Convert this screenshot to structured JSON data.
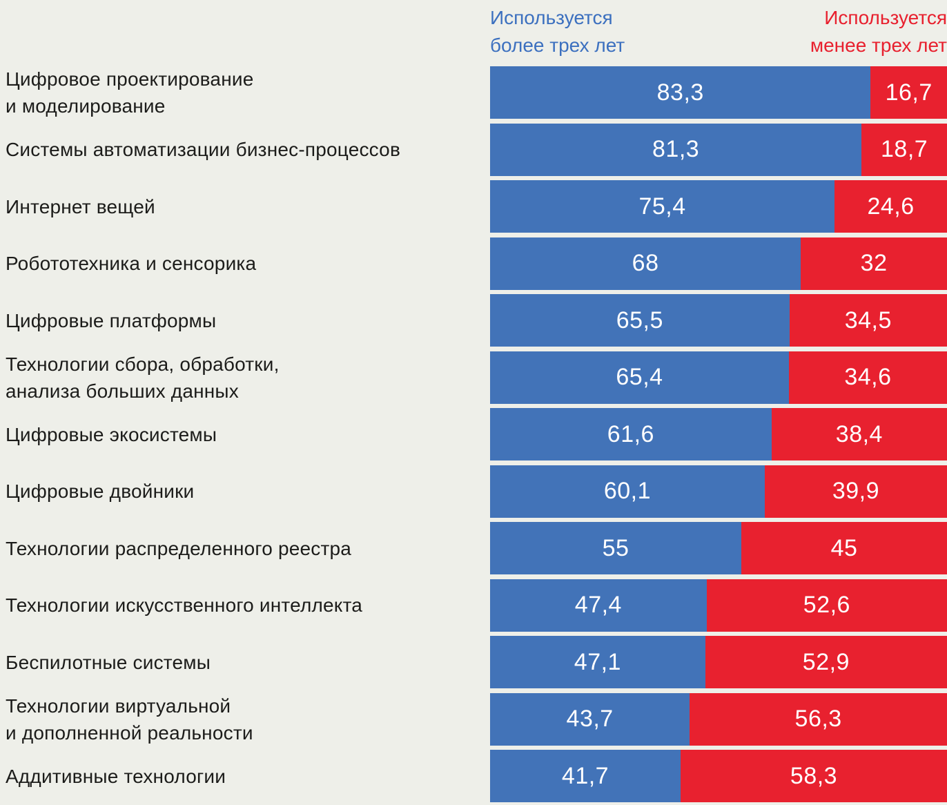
{
  "colors": {
    "background": "#eeefe9",
    "blue": "#4273b8",
    "red": "#e8212f",
    "label_text": "#1c1c1a",
    "legend_blue": "#3c70bf",
    "legend_red": "#e8202e",
    "value_text": "#ffffff"
  },
  "legend": {
    "more_label": "Используется\nболее трех лет",
    "less_label": "Используется\nменее трех лет"
  },
  "chart_data": {
    "type": "bar",
    "orientation": "horizontal",
    "stacked": true,
    "unit": "percent",
    "x_range": [
      0,
      100
    ],
    "decimal_separator": ",",
    "legend_position": "top",
    "series_names": [
      "Используется более трех лет",
      "Используется менее трех лет"
    ],
    "series_colors": [
      "#4273b8",
      "#e8212f"
    ],
    "rows": [
      {
        "category": "Цифровое проектирование\nи моделирование",
        "more": 83.3,
        "less": 16.7,
        "more_label": "83,3",
        "less_label": "16,7"
      },
      {
        "category": "Системы автоматизации бизнес-процессов",
        "more": 81.3,
        "less": 18.7,
        "more_label": "81,3",
        "less_label": "18,7"
      },
      {
        "category": "Интернет вещей",
        "more": 75.4,
        "less": 24.6,
        "more_label": "75,4",
        "less_label": "24,6"
      },
      {
        "category": "Робототехника и сенсорика",
        "more": 68,
        "less": 32,
        "more_label": "68",
        "less_label": "32"
      },
      {
        "category": "Цифровые платформы",
        "more": 65.5,
        "less": 34.5,
        "more_label": "65,5",
        "less_label": "34,5"
      },
      {
        "category": "Технологии сбора, обработки,\nанализа больших данных",
        "more": 65.4,
        "less": 34.6,
        "more_label": "65,4",
        "less_label": "34,6"
      },
      {
        "category": "Цифровые экосистемы",
        "more": 61.6,
        "less": 38.4,
        "more_label": "61,6",
        "less_label": "38,4"
      },
      {
        "category": "Цифровые двойники",
        "more": 60.1,
        "less": 39.9,
        "more_label": "60,1",
        "less_label": "39,9"
      },
      {
        "category": "Технологии распределенного реестра",
        "more": 55,
        "less": 45,
        "more_label": "55",
        "less_label": "45"
      },
      {
        "category": "Технологии искусственного интеллекта",
        "more": 47.4,
        "less": 52.6,
        "more_label": "47,4",
        "less_label": "52,6"
      },
      {
        "category": "Беспилотные системы",
        "more": 47.1,
        "less": 52.9,
        "more_label": "47,1",
        "less_label": "52,9"
      },
      {
        "category": "Технологии виртуальной\nи дополненной реальности",
        "more": 43.7,
        "less": 56.3,
        "more_label": "43,7",
        "less_label": "56,3"
      },
      {
        "category": "Аддитивные технологии",
        "more": 41.7,
        "less": 58.3,
        "more_label": "41,7",
        "less_label": "58,3"
      }
    ]
  }
}
